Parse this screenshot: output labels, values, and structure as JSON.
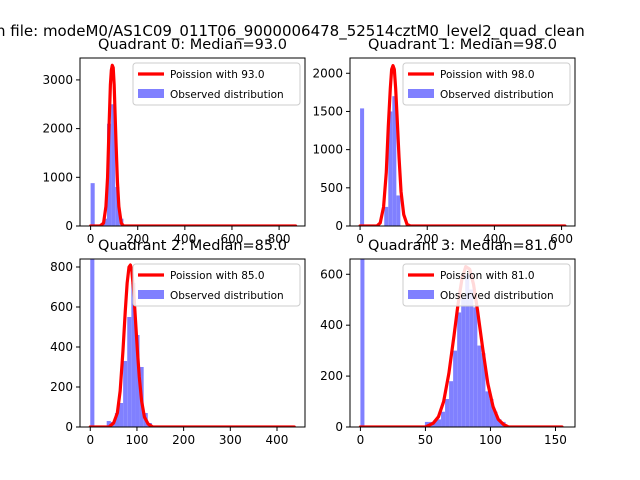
{
  "figure": {
    "suptitle": "n file: modeM0/AS1C09_011T06_9000006478_52514cztM0_level2_quad_clean"
  },
  "colors": {
    "poisson": "#ff0000",
    "histogram": "#8080ff",
    "axis": "#000000"
  },
  "chart_data": [
    {
      "type": "bar",
      "title": "Quadrant 0: Median=93.0",
      "xlim": [
        -45,
        910
      ],
      "ylim": [
        0,
        3450
      ],
      "xticks": [
        0,
        200,
        400,
        600,
        800
      ],
      "yticks": [
        0,
        1000,
        2000,
        3000
      ],
      "bin_width": 17.4,
      "bins": [
        [
          0,
          880
        ],
        [
          17.4,
          0
        ],
        [
          34.8,
          0
        ],
        [
          52.2,
          150
        ],
        [
          69.6,
          2100
        ],
        [
          87,
          2500
        ],
        [
          104.4,
          800
        ],
        [
          121.8,
          150
        ]
      ],
      "poisson": {
        "label": "Poission with 93.0",
        "x": [
          0,
          40,
          55,
          65,
          72,
          78,
          84,
          88,
          92,
          96,
          100,
          104,
          108,
          114,
          120,
          130,
          140,
          150,
          870
        ],
        "y": [
          0,
          0,
          60,
          400,
          1000,
          2000,
          2900,
          3200,
          3300,
          3250,
          2900,
          2300,
          1700,
          900,
          400,
          60,
          0,
          0,
          0
        ]
      },
      "histogram_label": "Observed distribution"
    },
    {
      "type": "bar",
      "title": "Quadrant 1: Median=98.0",
      "xlim": [
        -30,
        640
      ],
      "ylim": [
        0,
        2200
      ],
      "xticks": [
        0,
        200,
        400,
        600
      ],
      "yticks": [
        0,
        500,
        1000,
        1500,
        2000
      ],
      "bin_width": 12,
      "bins": [
        [
          0,
          1540
        ],
        [
          12,
          0
        ],
        [
          24,
          0
        ],
        [
          36,
          0
        ],
        [
          48,
          0
        ],
        [
          60,
          0
        ],
        [
          72,
          250
        ],
        [
          84,
          1500
        ],
        [
          96,
          1700
        ],
        [
          108,
          400
        ],
        [
          120,
          0
        ]
      ],
      "poisson": {
        "label": "Poission with 98.0",
        "x": [
          0,
          50,
          60,
          70,
          78,
          84,
          90,
          94,
          98,
          102,
          106,
          110,
          116,
          122,
          130,
          140,
          150,
          160,
          610
        ],
        "y": [
          0,
          0,
          40,
          250,
          700,
          1300,
          1800,
          2050,
          2100,
          2050,
          1800,
          1450,
          900,
          450,
          150,
          20,
          0,
          0,
          0
        ]
      },
      "histogram_label": "Observed distribution"
    },
    {
      "type": "bar",
      "title": "Quadrant 2: Median=85.0",
      "xlim": [
        -22,
        460
      ],
      "ylim": [
        0,
        840
      ],
      "xticks": [
        0,
        100,
        200,
        300,
        400
      ],
      "yticks": [
        0,
        200,
        400,
        600,
        800
      ],
      "bin_width": 8.8,
      "bins": [
        [
          0,
          840
        ],
        [
          8.8,
          0
        ],
        [
          17.6,
          0
        ],
        [
          26.4,
          0
        ],
        [
          35.2,
          30
        ],
        [
          44,
          25
        ],
        [
          52.8,
          70
        ],
        [
          61.6,
          120
        ],
        [
          70.4,
          330
        ],
        [
          79.2,
          550
        ],
        [
          88,
          720
        ],
        [
          96.8,
          460
        ],
        [
          105.6,
          300
        ],
        [
          114.4,
          70
        ],
        [
          123.2,
          20
        ],
        [
          132,
          5
        ]
      ],
      "poisson": {
        "label": "Poission with 85.0",
        "x": [
          0,
          40,
          50,
          58,
          64,
          70,
          75,
          79,
          83,
          86,
          89,
          93,
          97,
          101,
          105,
          110,
          116,
          124,
          134,
          150,
          437
        ],
        "y": [
          0,
          0,
          20,
          70,
          180,
          380,
          580,
          720,
          800,
          810,
          780,
          680,
          530,
          380,
          250,
          130,
          50,
          15,
          0,
          0,
          0
        ]
      },
      "histogram_label": "Observed distribution"
    },
    {
      "type": "bar",
      "title": "Quadrant 3: Median=81.0",
      "xlim": [
        -8,
        165
      ],
      "ylim": [
        0,
        660
      ],
      "xticks": [
        0,
        50,
        100,
        150
      ],
      "yticks": [
        0,
        200,
        400,
        600
      ],
      "bin_width": 3.1,
      "bins": [
        [
          0,
          660
        ],
        [
          3.1,
          0
        ],
        [
          49.6,
          20
        ],
        [
          52.7,
          20
        ],
        [
          55.8,
          25
        ],
        [
          58.9,
          30
        ],
        [
          62,
          60
        ],
        [
          65.1,
          110
        ],
        [
          68.2,
          180
        ],
        [
          71.3,
          300
        ],
        [
          74.4,
          450
        ],
        [
          77.5,
          510
        ],
        [
          80.6,
          600
        ],
        [
          83.7,
          540
        ],
        [
          86.8,
          470
        ],
        [
          89.9,
          320
        ],
        [
          93,
          290
        ],
        [
          96.1,
          140
        ],
        [
          99.2,
          110
        ],
        [
          102.3,
          60
        ],
        [
          105.4,
          30
        ],
        [
          108.5,
          20
        ]
      ],
      "poisson": {
        "label": "Poission with 81.0",
        "x": [
          0,
          50,
          56,
          60,
          64,
          68,
          72,
          75,
          78,
          81,
          84,
          87,
          90,
          94,
          98,
          102,
          106,
          110,
          114,
          120,
          155
        ],
        "y": [
          0,
          0,
          15,
          40,
          100,
          210,
          360,
          480,
          580,
          630,
          620,
          560,
          460,
          310,
          170,
          80,
          30,
          10,
          0,
          0,
          0
        ]
      },
      "histogram_label": "Observed distribution"
    }
  ]
}
